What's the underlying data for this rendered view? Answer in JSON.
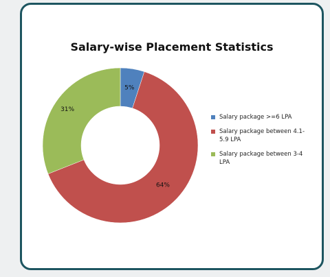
{
  "chart_data": {
    "type": "pie",
    "title": "Salary-wise Placement Statistics",
    "categories": [
      "Salary package >=6 LPA",
      "Salary package between 4.1-5.9 LPA",
      "Salary package between 3-4 LPA"
    ],
    "values": [
      5,
      64,
      31
    ],
    "value_labels": [
      "5%",
      "64%",
      "31%"
    ],
    "colors": [
      "#4f81bd",
      "#c0504d",
      "#9bbb59"
    ],
    "donut": true
  }
}
